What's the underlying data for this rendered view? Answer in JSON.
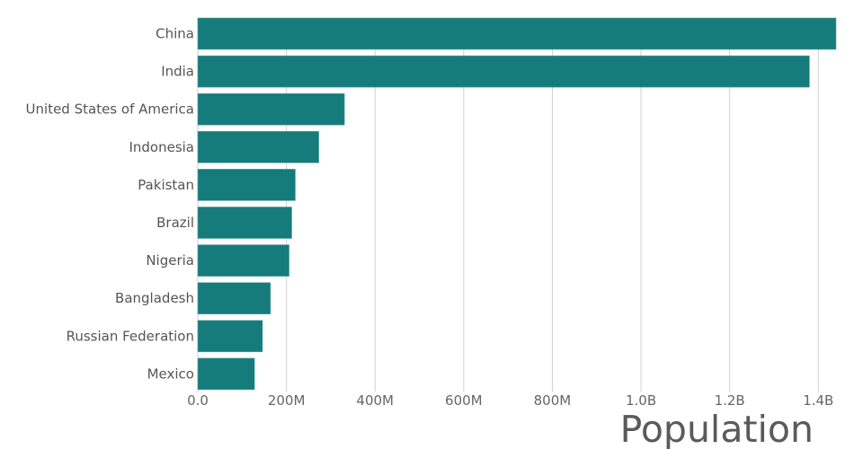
{
  "chart_data": {
    "type": "bar",
    "orientation": "horizontal",
    "categories": [
      "China",
      "India",
      "United States of America",
      "Indonesia",
      "Pakistan",
      "Brazil",
      "Nigeria",
      "Bangladesh",
      "Russian Federation",
      "Mexico"
    ],
    "values": [
      1440000000,
      1380000000,
      331000000,
      273000000,
      220000000,
      212000000,
      206000000,
      164000000,
      146000000,
      128000000
    ],
    "xlabel": "Population",
    "ylabel": "",
    "xlim": [
      0,
      1440000000
    ],
    "xticks": [
      0,
      200000000,
      400000000,
      600000000,
      800000000,
      1000000000,
      1200000000,
      1400000000
    ],
    "xtick_labels": [
      "0.0",
      "200M",
      "400M",
      "600M",
      "800M",
      "1.0B",
      "1.2B",
      "1.4B"
    ],
    "grid": "vertical",
    "bar_color": "#167b7b",
    "grid_color": "#d0d0d0"
  }
}
